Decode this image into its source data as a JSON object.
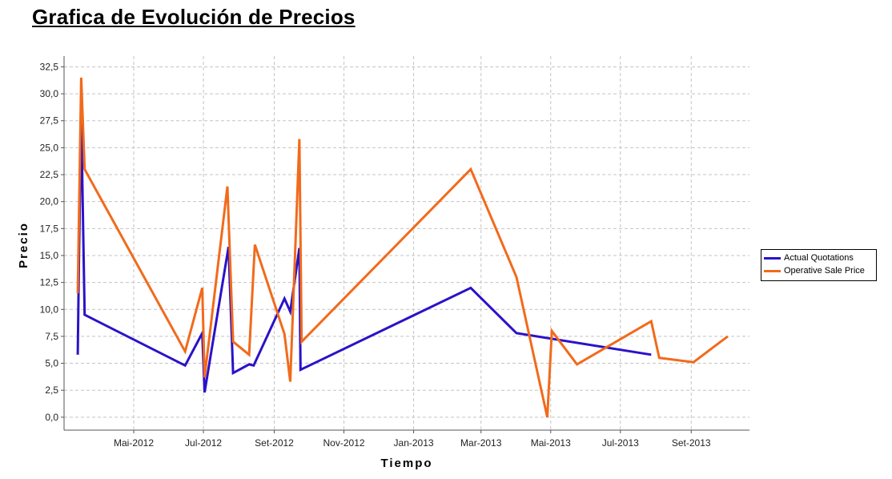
{
  "title": "Grafica de Evolución de Precios",
  "chart_data": {
    "type": "line",
    "title": "Grafica de Evolución de Precios",
    "xlabel": "Tiempo",
    "ylabel": "Precio",
    "xlim": [
      "2012-03-01",
      "2013-10-22"
    ],
    "ylim": [
      -1.2,
      33.5
    ],
    "y_ticks": [
      "0,0",
      "2,5",
      "5,0",
      "7,5",
      "10,0",
      "12,5",
      "15,0",
      "17,5",
      "20,0",
      "22,5",
      "25,0",
      "27,5",
      "30,0",
      "32,5"
    ],
    "x_ticks": [
      {
        "date": "2012-05-01",
        "label": "Mai-2012"
      },
      {
        "date": "2012-07-01",
        "label": "Jul-2012"
      },
      {
        "date": "2012-09-01",
        "label": "Set-2012"
      },
      {
        "date": "2012-11-01",
        "label": "Nov-2012"
      },
      {
        "date": "2013-01-01",
        "label": "Jan-2013"
      },
      {
        "date": "2013-03-01",
        "label": "Mar-2013"
      },
      {
        "date": "2013-05-01",
        "label": "Mai-2013"
      },
      {
        "date": "2013-07-01",
        "label": "Jul-2013"
      },
      {
        "date": "2013-09-01",
        "label": "Set-2013"
      }
    ],
    "grid": true,
    "legend_position": "right",
    "series": [
      {
        "name": "Actual Quotations",
        "color": "#2a12c8",
        "points": [
          [
            "2012-03-13",
            5.8
          ],
          [
            "2012-03-14",
            14.0
          ],
          [
            "2012-03-16",
            28.0
          ],
          [
            "2012-03-19",
            9.5
          ],
          [
            "2012-06-15",
            4.8
          ],
          [
            "2012-06-30",
            7.8
          ],
          [
            "2012-07-02",
            2.3
          ],
          [
            "2012-07-23",
            15.8
          ],
          [
            "2012-07-27",
            4.1
          ],
          [
            "2012-08-10",
            4.9
          ],
          [
            "2012-08-14",
            4.8
          ],
          [
            "2012-09-10",
            11.0
          ],
          [
            "2012-09-15",
            9.8
          ],
          [
            "2012-09-23",
            15.7
          ],
          [
            "2012-09-24",
            4.4
          ],
          [
            "2013-02-20",
            12.0
          ],
          [
            "2013-04-01",
            7.8
          ],
          [
            "2013-07-28",
            5.8
          ]
        ]
      },
      {
        "name": "Operative Sale Price",
        "color": "#f26a1b",
        "points": [
          [
            "2012-03-13",
            11.5
          ],
          [
            "2012-03-16",
            31.5
          ],
          [
            "2012-03-19",
            23.0
          ],
          [
            "2012-06-15",
            6.1
          ],
          [
            "2012-06-30",
            12.0
          ],
          [
            "2012-07-02",
            3.7
          ],
          [
            "2012-07-22",
            21.4
          ],
          [
            "2012-07-27",
            7.0
          ],
          [
            "2012-08-10",
            5.8
          ],
          [
            "2012-08-15",
            16.0
          ],
          [
            "2012-09-10",
            7.7
          ],
          [
            "2012-09-15",
            3.3
          ],
          [
            "2012-09-23",
            25.8
          ],
          [
            "2012-09-25",
            7.0
          ],
          [
            "2013-02-20",
            23.0
          ],
          [
            "2013-04-01",
            13.0
          ],
          [
            "2013-04-28",
            0.0
          ],
          [
            "2013-05-02",
            8.0
          ],
          [
            "2013-05-24",
            4.9
          ],
          [
            "2013-07-28",
            8.9
          ],
          [
            "2013-08-04",
            5.5
          ],
          [
            "2013-09-03",
            5.1
          ],
          [
            "2013-10-03",
            7.5
          ]
        ]
      }
    ]
  }
}
